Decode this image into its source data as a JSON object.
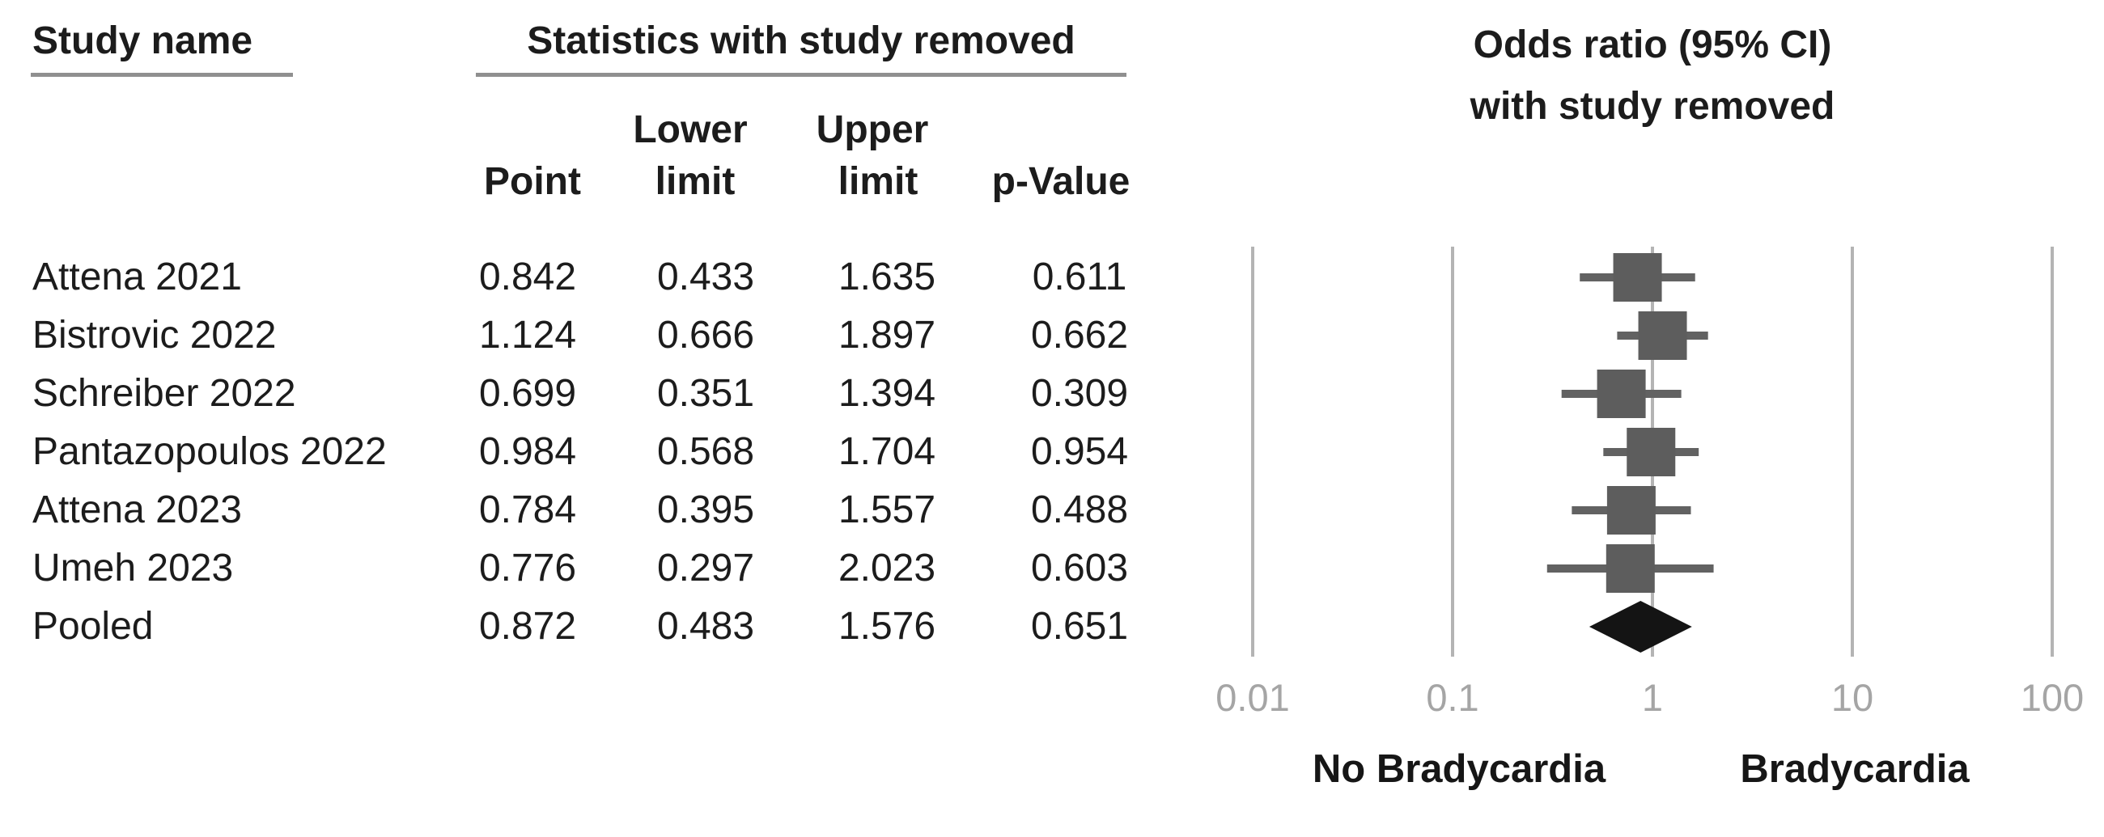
{
  "title_headers": {
    "study_col": "Study name",
    "stats_group": "Statistics with study removed",
    "plot_line1": "Odds ratio (95% CI)",
    "plot_line2": "with study removed"
  },
  "stats_subheaders": {
    "lower_top": "Lower",
    "upper_top": "Upper",
    "point": "Point",
    "lower_bottom": "limit",
    "upper_bottom": "limit",
    "p_value": "p-Value"
  },
  "axis": {
    "ticks": [
      "0.01",
      "0.1",
      "1",
      "10",
      "100"
    ]
  },
  "footer_labels": {
    "left": "No Bradycardia",
    "right": "Bradycardia"
  },
  "chart_data": {
    "type": "forest",
    "x_scale": "log10",
    "xlim": [
      0.01,
      100
    ],
    "effect_measure": "Odds ratio (95% CI) with study removed",
    "columns": [
      "Point",
      "Lower limit",
      "Upper limit",
      "p-Value"
    ],
    "rows": [
      {
        "study": "Attena 2021",
        "point": 0.842,
        "lower": 0.433,
        "upper": 1.635,
        "p_value": 0.611,
        "is_pooled": false
      },
      {
        "study": "Bistrovic 2022",
        "point": 1.124,
        "lower": 0.666,
        "upper": 1.897,
        "p_value": 0.662,
        "is_pooled": false
      },
      {
        "study": "Schreiber 2022",
        "point": 0.699,
        "lower": 0.351,
        "upper": 1.394,
        "p_value": 0.309,
        "is_pooled": false
      },
      {
        "study": "Pantazopoulos 2022",
        "point": 0.984,
        "lower": 0.568,
        "upper": 1.704,
        "p_value": 0.954,
        "is_pooled": false
      },
      {
        "study": "Attena 2023",
        "point": 0.784,
        "lower": 0.395,
        "upper": 1.557,
        "p_value": 0.488,
        "is_pooled": false
      },
      {
        "study": "Umeh 2023",
        "point": 0.776,
        "lower": 0.297,
        "upper": 2.023,
        "p_value": 0.603,
        "is_pooled": false
      },
      {
        "study": "Pooled",
        "point": 0.872,
        "lower": 0.483,
        "upper": 1.576,
        "p_value": 0.651,
        "is_pooled": true
      }
    ],
    "xlabel_ticks": [
      0.01,
      0.1,
      1,
      10,
      100
    ],
    "direction_labels": {
      "left": "No Bradycardia",
      "right": "Bradycardia"
    },
    "gridlines": true,
    "legend_position": "none"
  },
  "colors": {
    "square": "#5d5d5d",
    "whisker": "#626262",
    "diamond": "#141414",
    "gridline": "#b4b4b4",
    "axis_label": "#a5a5a5",
    "text": "#1c1c1c",
    "underline": "#8f8f8f",
    "background": "#ffffff"
  }
}
